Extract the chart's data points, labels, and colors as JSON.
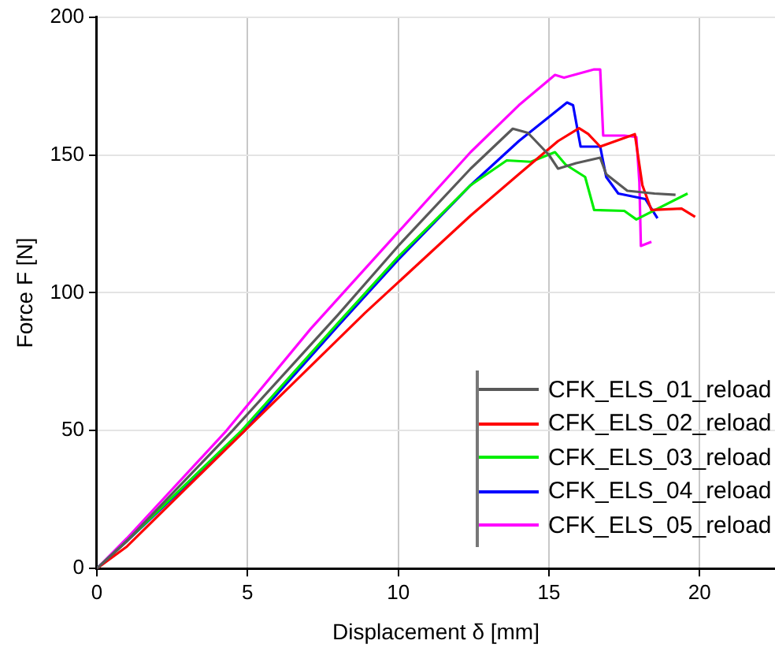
{
  "chart_data": {
    "type": "line",
    "xlabel": "Displacement δ [mm]",
    "ylabel": "Force F [N]",
    "xlim": [
      0,
      22.5
    ],
    "xticks": [
      0,
      5,
      10,
      15,
      20
    ],
    "ylim": [
      0,
      200
    ],
    "yticks": [
      0,
      50,
      100,
      150,
      200
    ],
    "grid": true,
    "legend": "bottom right",
    "marker": "none",
    "line_style": "solid",
    "series": [
      {
        "name": "CFK_ELS_01_reload",
        "color": "#595959",
        "x": [
          0,
          1,
          4.5,
          8,
          10,
          12.4,
          13.8,
          14.3,
          15,
          15.3,
          15.9,
          16.7,
          16.9,
          17.6,
          18.5,
          19.2
        ],
        "values": [
          0,
          10,
          50,
          92,
          117,
          145,
          159.5,
          158,
          150,
          145,
          147,
          149,
          143,
          137,
          136,
          135.5
        ]
      },
      {
        "name": "CFK_ELS_02_reload",
        "color": "#ff0000",
        "x": [
          0,
          1,
          5,
          8.9,
          12.4,
          14,
          15.3,
          16,
          16.3,
          16.7,
          17.85,
          18.1,
          18.4,
          19.4,
          19.85
        ],
        "values": [
          0,
          8,
          51,
          92.7,
          128,
          143,
          155,
          159.7,
          157.6,
          153,
          157.5,
          139,
          130,
          130.5,
          127.5
        ]
      },
      {
        "name": "CFK_ELS_03_reload",
        "color": "#00ee00",
        "x": [
          0,
          1,
          4.8,
          8,
          10,
          12.4,
          13.6,
          14.4,
          15.2,
          15.55,
          16.2,
          16.5,
          17.5,
          17.9,
          19.6
        ],
        "values": [
          0,
          10,
          50,
          89,
          113,
          139,
          148,
          147.5,
          151,
          146.5,
          142,
          130,
          129.7,
          126.6,
          136
        ]
      },
      {
        "name": "CFK_ELS_04_reload",
        "color": "#0000ff",
        "x": [
          0,
          1,
          4.9,
          8,
          10,
          12.4,
          14,
          15.6,
          15.8,
          16.05,
          16.7,
          16.9,
          17.3,
          18.2,
          18.6
        ],
        "values": [
          0,
          10,
          50,
          88,
          112,
          139,
          155,
          169,
          168,
          153,
          153,
          142,
          136,
          134,
          127
        ]
      },
      {
        "name": "CFK_ELS_05_reload",
        "color": "#ff00ff",
        "x": [
          0,
          1,
          4.3,
          7.1,
          10,
          12.4,
          14,
          15.2,
          15.5,
          16.5,
          16.7,
          16.8,
          17.5,
          17.9,
          18,
          18.05,
          18.4
        ],
        "values": [
          0,
          11,
          50,
          87,
          122,
          151,
          168,
          179,
          178,
          181,
          181,
          157,
          157,
          156.5,
          140,
          117,
          118.5
        ]
      }
    ]
  }
}
